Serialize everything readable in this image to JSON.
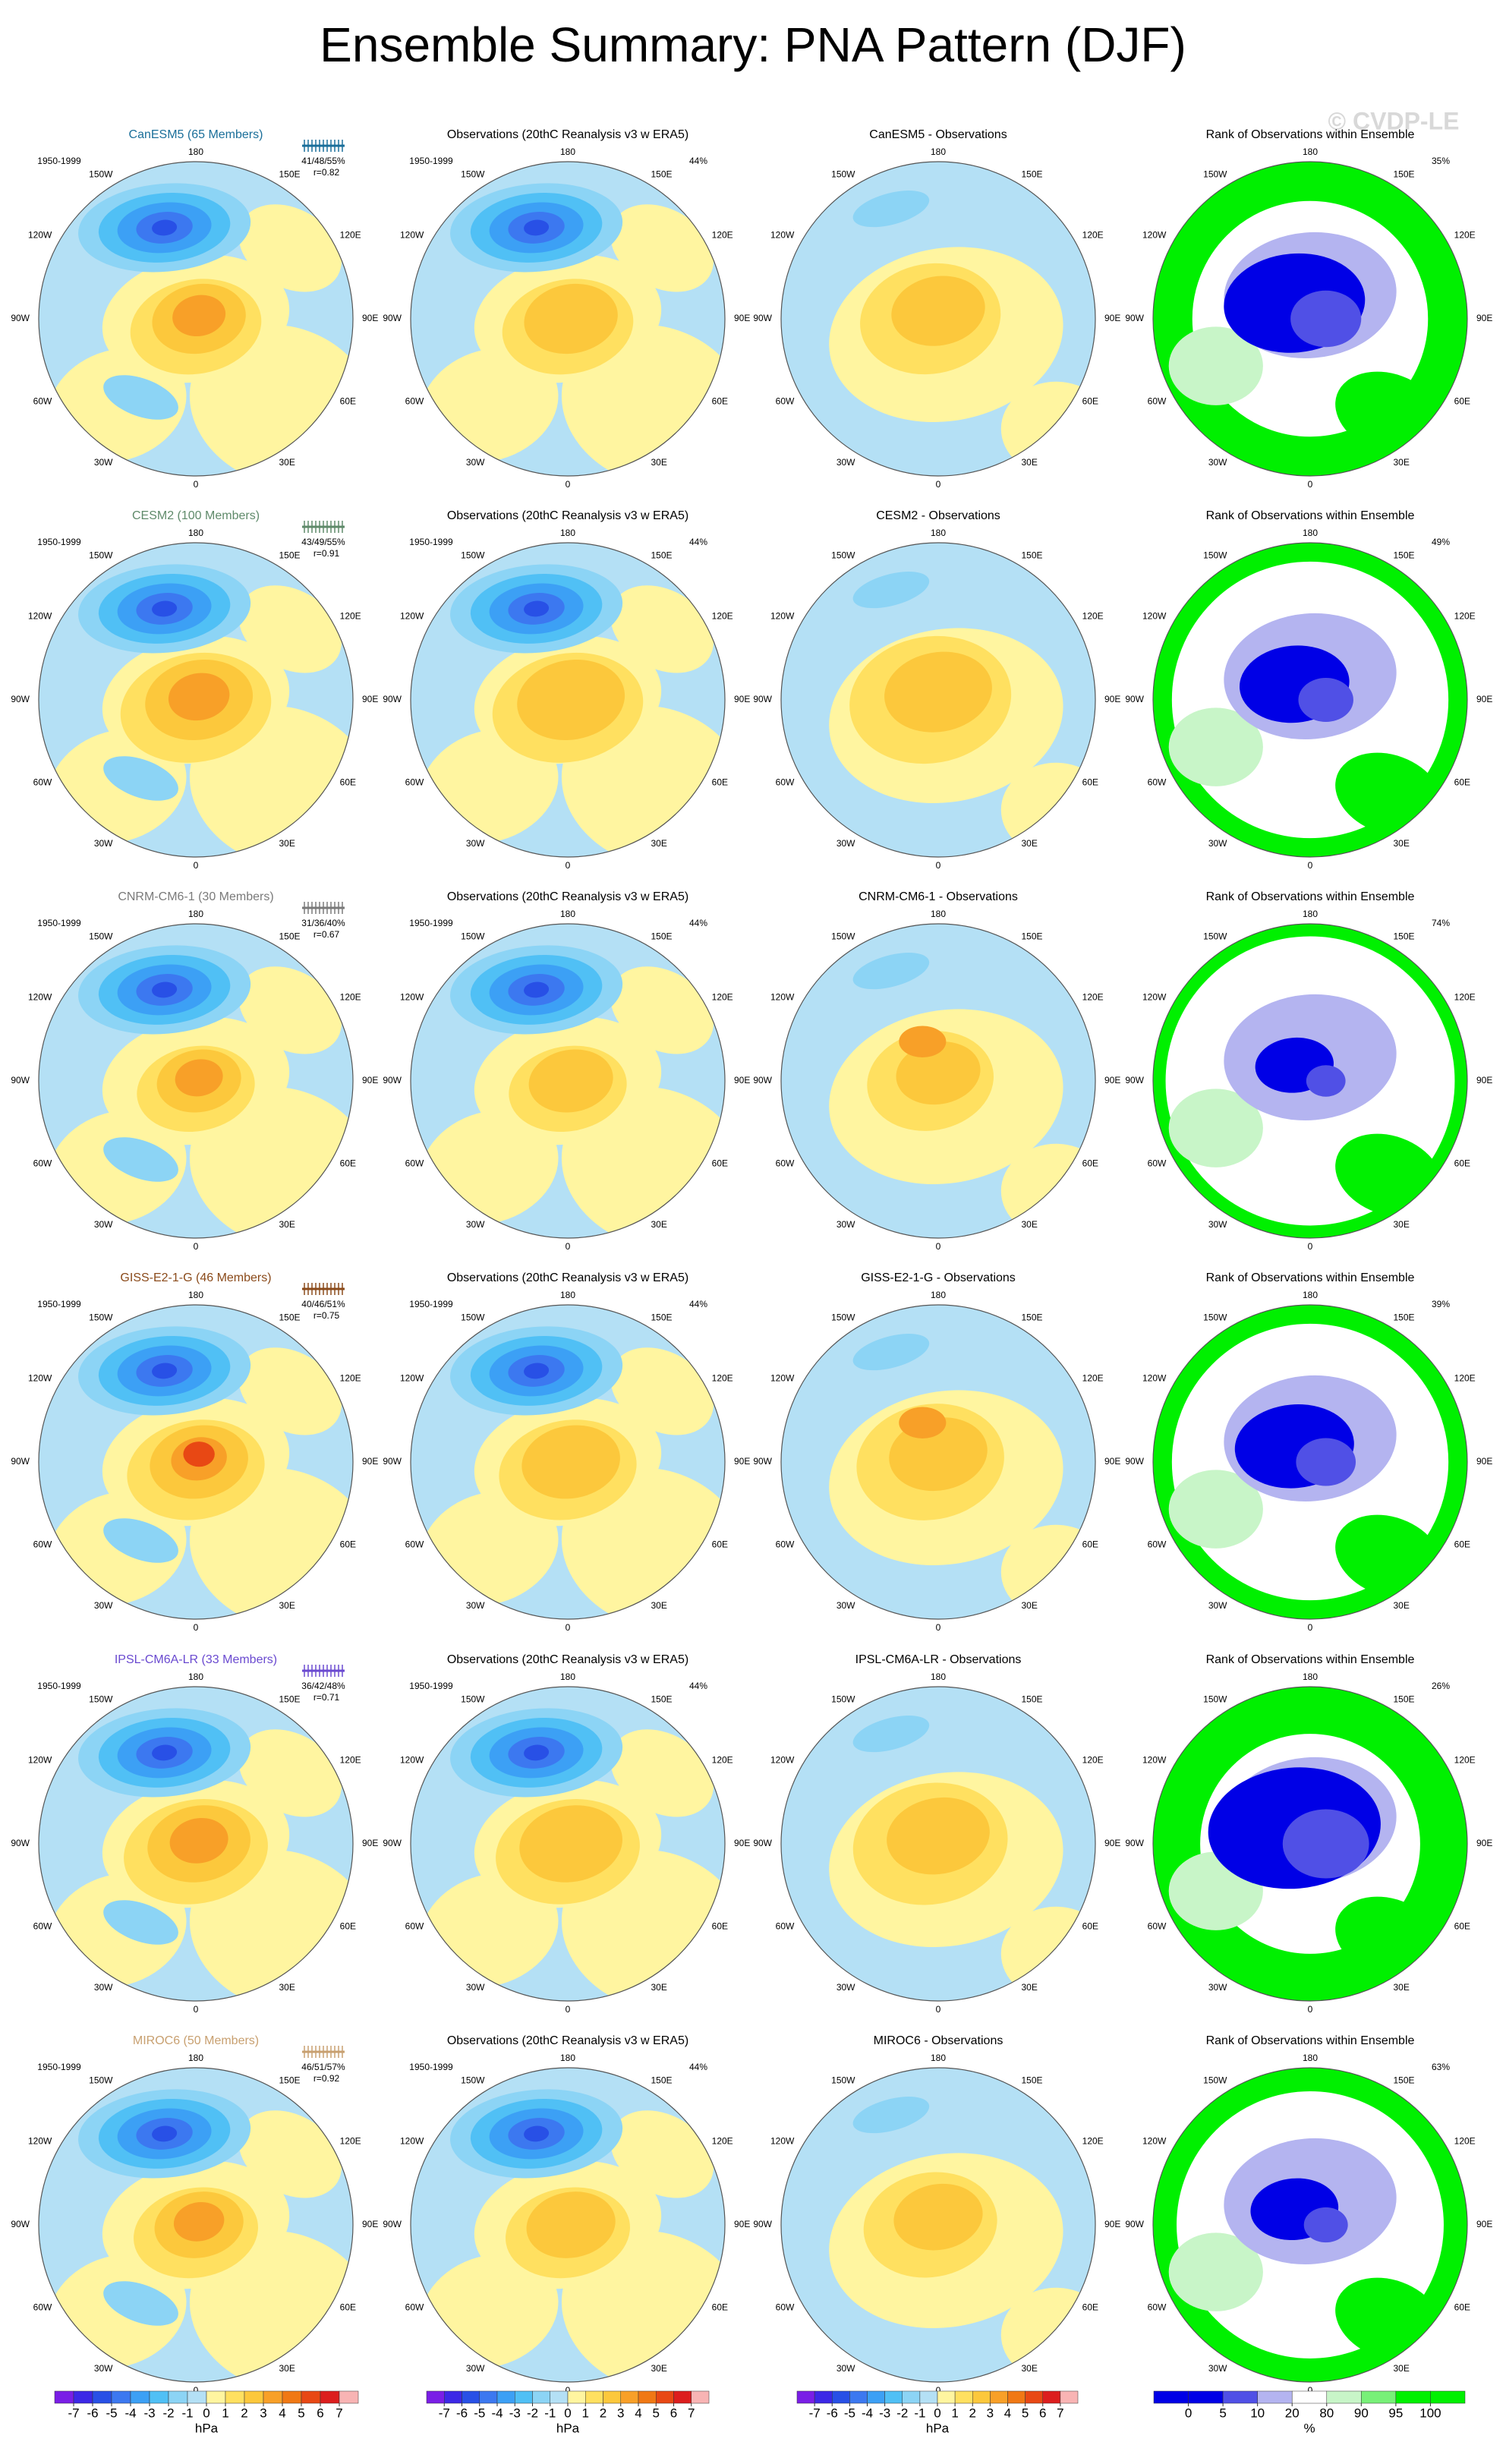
{
  "title": "Ensemble Summary: PNA Pattern (DJF)",
  "watermark": "© CVDP-LE",
  "period": "1950-1999",
  "longitude_labels": [
    "180",
    "150E",
    "120E",
    "90E",
    "60E",
    "30E",
    "0",
    "30W",
    "60W",
    "90W",
    "120W",
    "150W"
  ],
  "observations_title": "Observations (20thC Reanalysis v3 w ERA5)",
  "observations_percent": "44%",
  "rank_title": "Rank of Observations within Ensemble",
  "rows": [
    {
      "model": "CanESM5 (65 Members)",
      "color": "#1b6f9a",
      "stats": "41/48/55%",
      "r": "r=0.82",
      "difference_title": "CanESM5 - Observations",
      "rank_percent": "35%"
    },
    {
      "model": "CESM2 (100 Members)",
      "color": "#5f8a6a",
      "stats": "43/49/55%",
      "r": "r=0.91",
      "difference_title": "CESM2 - Observations",
      "rank_percent": "49%"
    },
    {
      "model": "CNRM-CM6-1 (30 Members)",
      "color": "#7a7a7a",
      "stats": "31/36/40%",
      "r": "r=0.67",
      "difference_title": "CNRM-CM6-1 - Observations",
      "rank_percent": "74%"
    },
    {
      "model": "GISS-E2-1-G (46 Members)",
      "color": "#8a4a1a",
      "stats": "40/46/51%",
      "r": "r=0.75",
      "difference_title": "GISS-E2-1-G - Observations",
      "rank_percent": "39%"
    },
    {
      "model": "IPSL-CM6A-LR (33 Members)",
      "color": "#6a4ad0",
      "stats": "36/42/48%",
      "r": "r=0.71",
      "difference_title": "IPSL-CM6A-LR - Observations",
      "rank_percent": "26%"
    },
    {
      "model": "MIROC6 (50 Members)",
      "color": "#c8a070",
      "stats": "46/51/57%",
      "r": "r=0.92",
      "difference_title": "MIROC6 - Observations",
      "rank_percent": "63%"
    }
  ],
  "hpa_colorbar": {
    "ticks": [
      -7,
      -6,
      -5,
      -4,
      -3,
      -2,
      -1,
      0,
      1,
      2,
      3,
      4,
      5,
      6,
      7
    ],
    "unit": "hPa",
    "colors": [
      "#7a1ee6",
      "#3c28e6",
      "#2850e6",
      "#3c78f0",
      "#3ca0f5",
      "#50c0f5",
      "#8cd4f5",
      "#b4e0f5",
      "#fff5a0",
      "#ffe060",
      "#fcc83c",
      "#f8a028",
      "#f07814",
      "#e84814",
      "#dc1e1e",
      "#f8b4b4"
    ]
  },
  "rank_colorbar": {
    "ticks": [
      0,
      5,
      10,
      20,
      80,
      90,
      95,
      100
    ],
    "unit": "%",
    "colors": [
      "#0000e6",
      "#0000e6",
      "#5050e6",
      "#b4b4f0",
      "#ffffff",
      "#c8f5c8",
      "#78f078",
      "#00f000",
      "#00f000"
    ]
  }
}
